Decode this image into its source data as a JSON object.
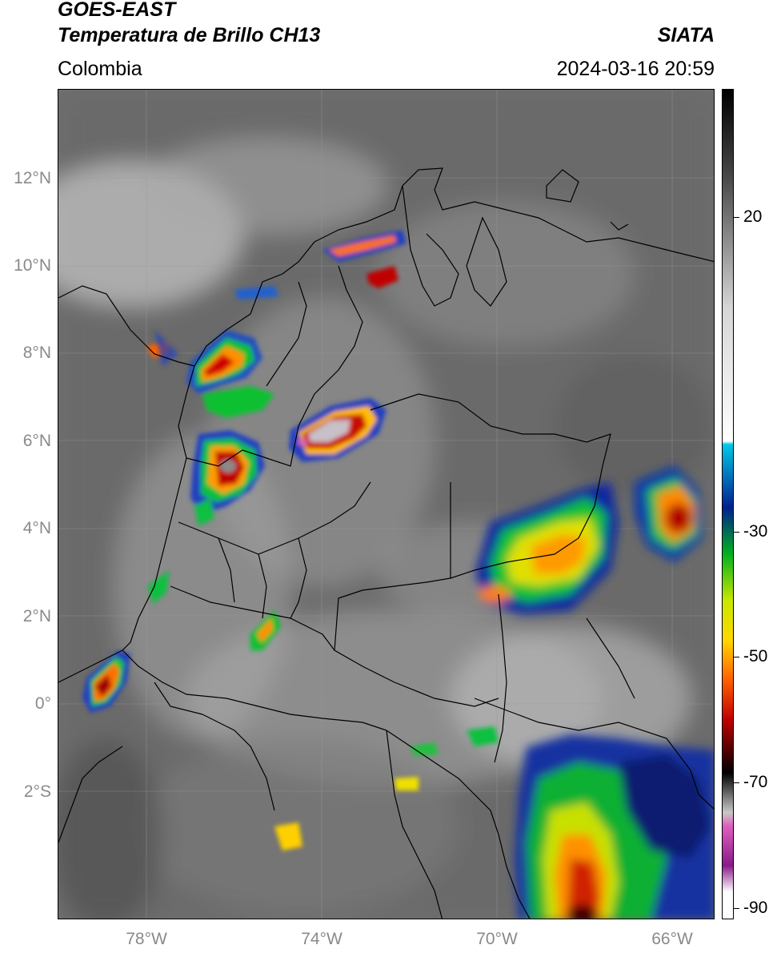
{
  "header": {
    "satellite": "GOES-EAST",
    "product": "Temperatura de Brillo CH13",
    "brand": "SIATA",
    "region": "Colombia",
    "datetime": "2024-03-16 20:59"
  },
  "map": {
    "lat_labels": [
      "12°N",
      "10°N",
      "8°N",
      "6°N",
      "4°N",
      "2°N",
      "0°",
      "2°S"
    ],
    "lon_labels": [
      "78°W",
      "74°W",
      "70°W",
      "66°W"
    ],
    "extent": {
      "lon_min": -80.0,
      "lon_max": -65.0,
      "lat_min": -4.7,
      "lat_max": 14.2
    }
  },
  "colorbar": {
    "ticks": [
      "20",
      "-30",
      "-50",
      "-70",
      "-90"
    ],
    "stops": [
      {
        "value": 33,
        "color": "#000000"
      },
      {
        "value": 20,
        "color": "#474747"
      },
      {
        "value": 0,
        "color": "#d6d6d6"
      },
      {
        "value": -20,
        "color": "#ffffff"
      },
      {
        "value": -20.5,
        "color": "#00c8e8"
      },
      {
        "value": -30,
        "color": "#002090"
      },
      {
        "value": -37,
        "color": "#00b020"
      },
      {
        "value": -44,
        "color": "#c8e800"
      },
      {
        "value": -50,
        "color": "#ffd800"
      },
      {
        "value": -56,
        "color": "#ff6000"
      },
      {
        "value": -62,
        "color": "#c00000"
      },
      {
        "value": -70,
        "color": "#000000"
      },
      {
        "value": -76,
        "color": "#c8c8c8"
      },
      {
        "value": -78,
        "color": "#e060c0"
      },
      {
        "value": -84,
        "color": "#8a1a8a"
      },
      {
        "value": -88,
        "color": "#ffffff"
      }
    ]
  }
}
